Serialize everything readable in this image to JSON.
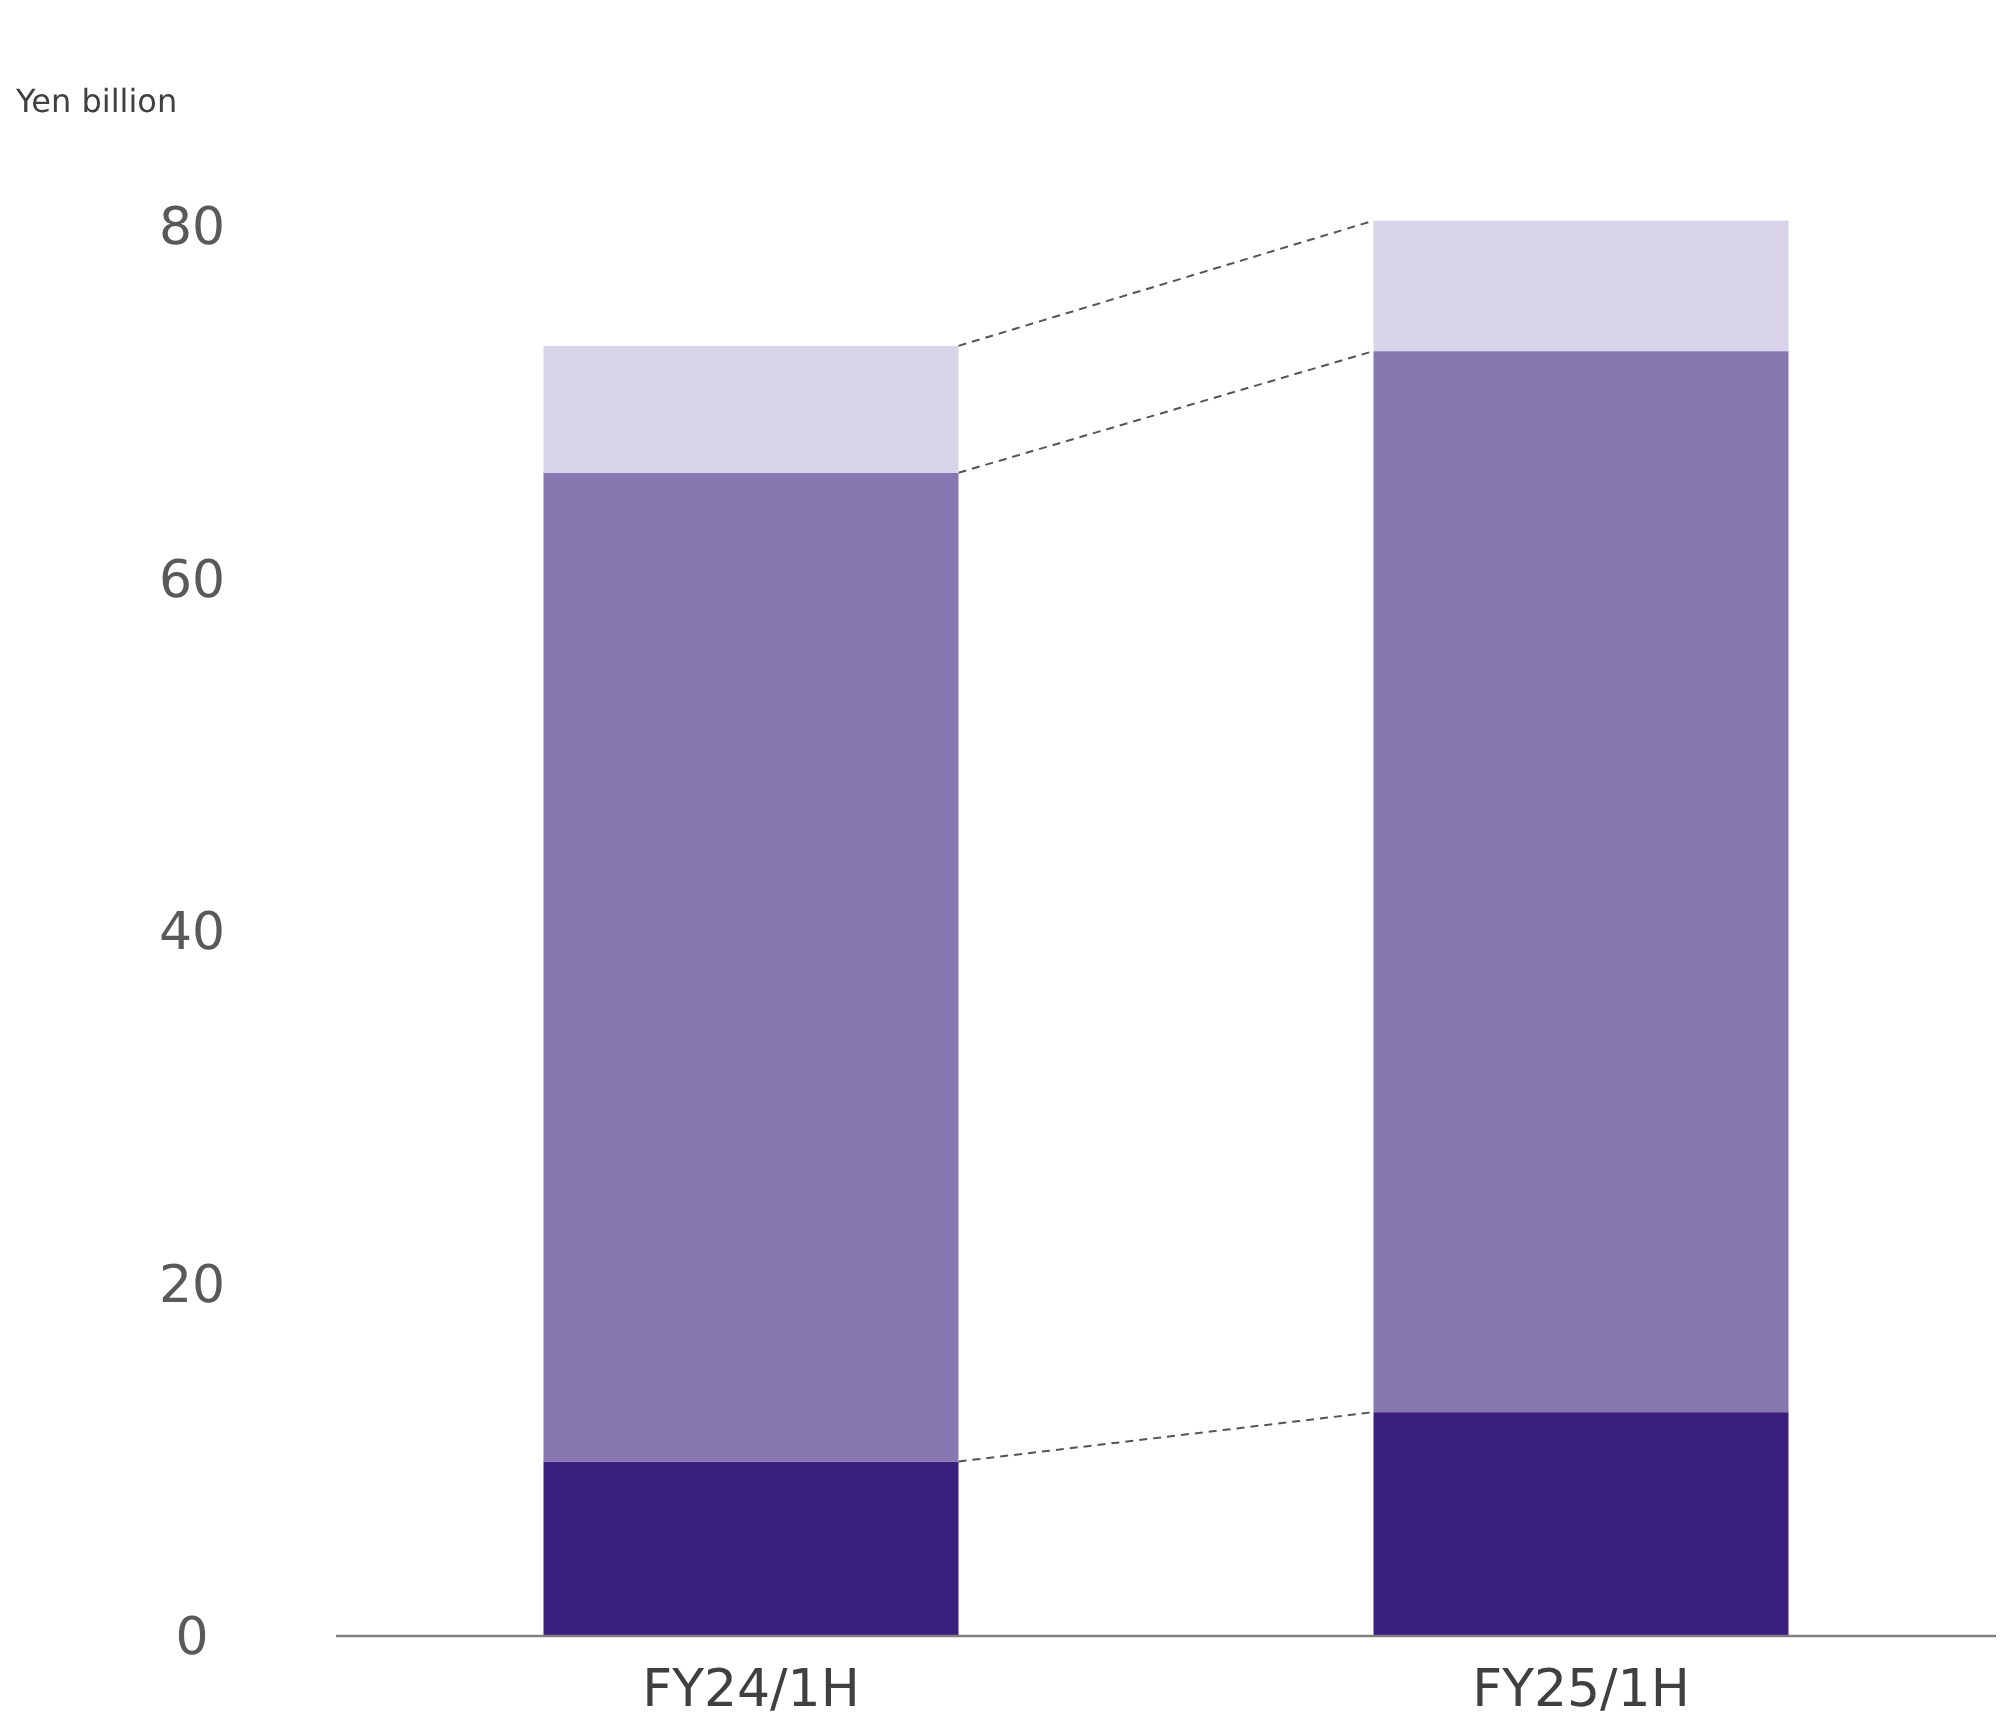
{
  "chart_data": {
    "type": "bar",
    "stacked": true,
    "ylabel": "Yen billion",
    "categories": [
      "FY24/1H",
      "FY25/1H"
    ],
    "series": [
      {
        "color": "#3a1f7e",
        "values": [
          9.9,
          12.7
        ]
      },
      {
        "color": "#8878b2",
        "values": [
          56.1,
          60.2
        ]
      },
      {
        "color": "#d8d3e8",
        "values": [
          7.2,
          7.4
        ]
      }
    ],
    "ylim": [
      0,
      80
    ],
    "yticks": [
      0,
      20,
      40,
      60,
      80
    ],
    "grid": false
  }
}
